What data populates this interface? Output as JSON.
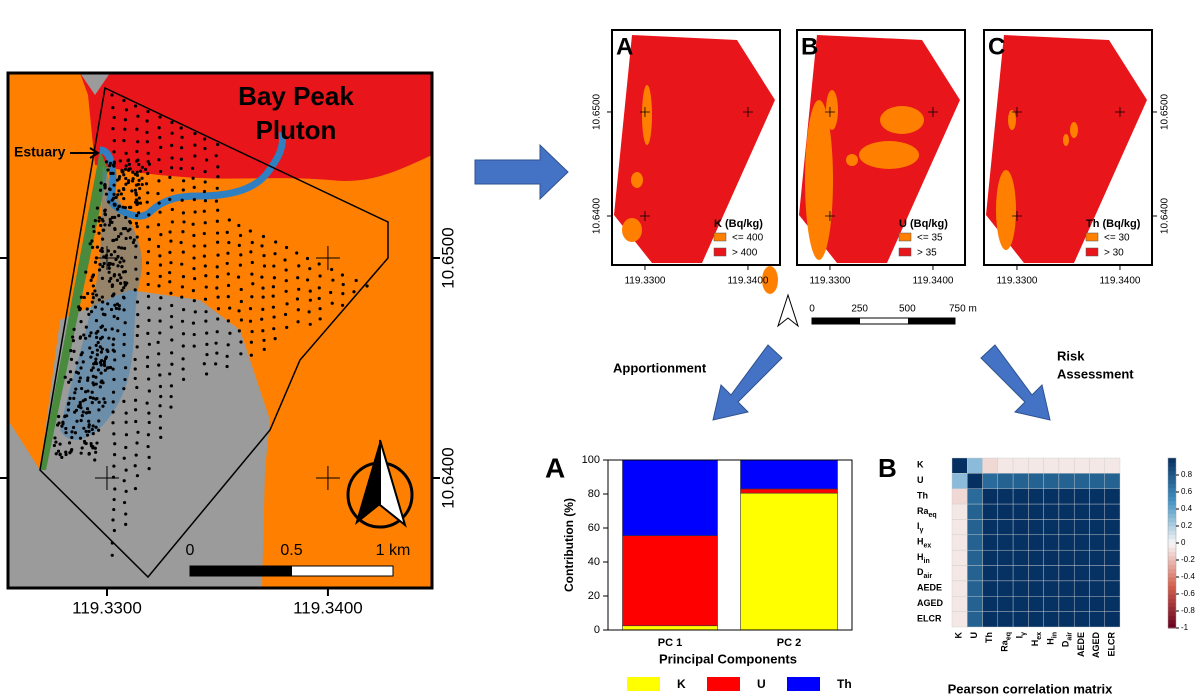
{
  "main_map": {
    "title_lines": [
      "Bay Peak",
      "Pluton"
    ],
    "estuary_label": "Estuary",
    "xlim": [
      119.32552,
      119.34471
    ],
    "ylim": [
      10.635,
      10.65841
    ],
    "xticks": [
      {
        "value": 119.33,
        "label": "119.3300"
      },
      {
        "value": 119.34,
        "label": "119.3400"
      }
    ],
    "yticks": [
      {
        "value": 10.65,
        "label": "10.6500"
      },
      {
        "value": 10.64,
        "label": "10.6400"
      }
    ],
    "scale_bar": [
      0,
      0.5,
      {
        "value": 1,
        "label": "1 km"
      }
    ]
  },
  "small_maps": [
    {
      "letter": "A",
      "legend_title": "K (Bq/kg)",
      "legend": [
        "<= 400",
        "> 400"
      ]
    },
    {
      "letter": "B",
      "legend_title": "U (Bq/kg)",
      "legend": [
        "<= 35",
        "> 35"
      ]
    },
    {
      "letter": "C",
      "legend_title": "Th (Bq/kg)",
      "legend": [
        "<= 30",
        "> 30"
      ]
    }
  ],
  "small_map_axes": {
    "xlim": [
      119.3268,
      119.34311
    ],
    "ylim": [
      10.63529,
      10.65788
    ],
    "xticks": [
      {
        "value": 119.33,
        "label": "119.3300"
      },
      {
        "value": 119.34,
        "label": "119.3400"
      }
    ],
    "yticks": [
      {
        "value": 10.65,
        "label": "10.6500"
      },
      {
        "value": 10.64,
        "label": "10.6400"
      }
    ],
    "scale_bar": [
      0,
      250,
      500,
      {
        "value": 750,
        "label": "750 m"
      }
    ]
  },
  "flow": {
    "apportionment": "Apportionment",
    "risk": [
      "Risk",
      "Assessment"
    ]
  },
  "chart_data": [
    {
      "type": "bar",
      "stacked": true,
      "panel": "A",
      "categories": [
        "PC 1",
        "PC 2"
      ],
      "series": [
        {
          "name": "K",
          "color": "#ffff00",
          "values": [
            2.5,
            80.5
          ]
        },
        {
          "name": "U",
          "color": "#ff0000",
          "values": [
            53,
            2.5
          ]
        },
        {
          "name": "Th",
          "color": "#0000ff",
          "values": [
            44.5,
            17
          ]
        }
      ],
      "ylim": [
        0,
        100
      ],
      "yticks": [
        0,
        20,
        40,
        60,
        80,
        100
      ],
      "y_label": "Contribution (%)",
      "x_label": "Principal Components"
    },
    {
      "type": "heatmap",
      "panel": "B",
      "title": "Pearson correlation matrix",
      "labels": [
        {
          "text": "K"
        },
        {
          "text": "U"
        },
        {
          "text": "Th"
        },
        {
          "text": "Ra",
          "sub": "eq"
        },
        {
          "text": "I",
          "sub": "γ"
        },
        {
          "text": "H",
          "sub": "ex"
        },
        {
          "text": "H",
          "sub": "in"
        },
        {
          "text": "D",
          "sub": "air"
        },
        {
          "text": "AEDE"
        },
        {
          "text": "AGED"
        },
        {
          "text": "ELCR"
        }
      ],
      "values": [
        [
          1,
          0.3,
          -0.1,
          -0.05,
          -0.05,
          -0.05,
          -0.05,
          -0.05,
          -0.05,
          -0.05,
          -0.05
        ],
        [
          0.3,
          1,
          0.7,
          0.75,
          0.75,
          0.75,
          0.75,
          0.75,
          0.75,
          0.75,
          0.75
        ],
        [
          -0.1,
          0.7,
          1,
          0.99,
          0.99,
          0.99,
          0.99,
          0.99,
          0.99,
          0.99,
          0.99
        ],
        [
          -0.05,
          0.75,
          0.99,
          1,
          0.99,
          0.99,
          0.99,
          0.99,
          0.99,
          0.99,
          0.99
        ],
        [
          -0.05,
          0.75,
          0.99,
          0.99,
          1,
          0.99,
          0.99,
          0.99,
          0.99,
          0.99,
          0.99
        ],
        [
          -0.05,
          0.75,
          0.99,
          0.99,
          0.99,
          1,
          0.99,
          0.99,
          0.99,
          0.99,
          0.99
        ],
        [
          -0.05,
          0.75,
          0.99,
          0.99,
          0.99,
          0.99,
          1,
          0.99,
          0.99,
          0.99,
          0.99
        ],
        [
          -0.05,
          0.75,
          0.99,
          0.99,
          0.99,
          0.99,
          0.99,
          1,
          0.99,
          0.99,
          0.99
        ],
        [
          -0.05,
          0.75,
          0.99,
          0.99,
          0.99,
          0.99,
          0.99,
          0.99,
          1,
          0.99,
          0.99
        ],
        [
          -0.05,
          0.75,
          0.99,
          0.99,
          0.99,
          0.99,
          0.99,
          0.99,
          0.99,
          1,
          0.99
        ],
        [
          -0.05,
          0.75,
          0.99,
          0.99,
          0.99,
          0.99,
          0.99,
          0.99,
          0.99,
          0.99,
          1
        ]
      ],
      "clim": [
        -1,
        1
      ],
      "cticks": [
        0.8,
        0.6,
        0.4,
        0.2,
        0,
        -0.2,
        -0.4,
        -0.6,
        -0.8,
        -1
      ]
    }
  ]
}
